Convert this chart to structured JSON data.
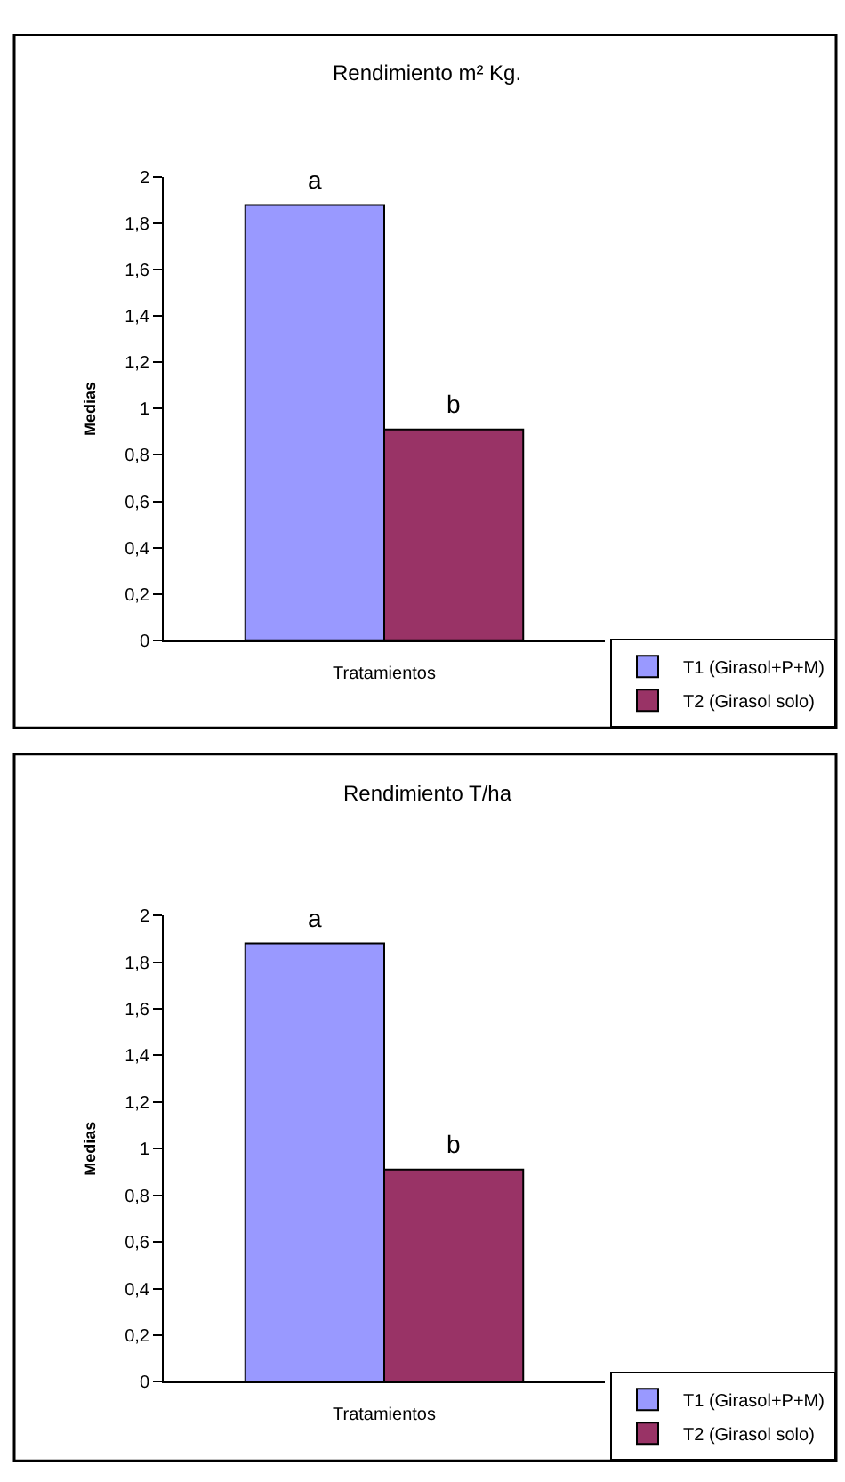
{
  "chart_data": [
    {
      "type": "bar",
      "title": "Rendimiento m² Kg.",
      "xlabel": "Tratamientos",
      "ylabel": "Medias",
      "categories": [
        null
      ],
      "series": [
        {
          "name": "T1 (Girasol+P+M)",
          "color": "#9999ff",
          "values": [
            1.88
          ]
        },
        {
          "name": "T2 (Girasol solo)",
          "color": "#993366",
          "values": [
            0.91
          ]
        }
      ],
      "ylim": [
        0,
        2
      ],
      "yticks": [
        0,
        {
          "value": 0.2,
          "label": "0,2"
        },
        {
          "value": 0.4,
          "label": "0,4"
        },
        {
          "value": 0.6,
          "label": "0,6"
        },
        {
          "value": 0.8,
          "label": "0,8"
        },
        1,
        {
          "value": 1.2,
          "label": "1,2"
        },
        {
          "value": 1.4,
          "label": "1,4"
        },
        {
          "value": 1.6,
          "label": "1,6"
        },
        {
          "value": 1.8,
          "label": "1,8"
        },
        2
      ],
      "annotations": [
        {
          "text": "a",
          "y": 1.88
        },
        {
          "text": "b",
          "y": 0.91
        }
      ],
      "legend": "bottom right"
    },
    {
      "type": "bar",
      "title": "Rendimiento T/ha",
      "xlabel": "Tratamientos",
      "ylabel": "Medias",
      "categories": [
        null
      ],
      "series": [
        {
          "name": "T1 (Girasol+P+M)",
          "color": "#9999ff",
          "values": [
            1.88
          ]
        },
        {
          "name": "T2 (Girasol solo)",
          "color": "#993366",
          "values": [
            0.91
          ]
        }
      ],
      "ylim": [
        0,
        2
      ],
      "yticks": [
        0,
        {
          "value": 0.2,
          "label": "0,2"
        },
        {
          "value": 0.4,
          "label": "0,4"
        },
        {
          "value": 0.6,
          "label": "0,6"
        },
        {
          "value": 0.8,
          "label": "0,8"
        },
        1,
        {
          "value": 1.2,
          "label": "1,2"
        },
        {
          "value": 1.4,
          "label": "1,4"
        },
        {
          "value": 1.6,
          "label": "1,6"
        },
        {
          "value": 1.8,
          "label": "1,8"
        },
        2
      ],
      "annotations": [
        {
          "text": "a",
          "y": 1.88
        },
        {
          "text": "b",
          "y": 0.91
        }
      ],
      "legend": "bottom right"
    }
  ]
}
